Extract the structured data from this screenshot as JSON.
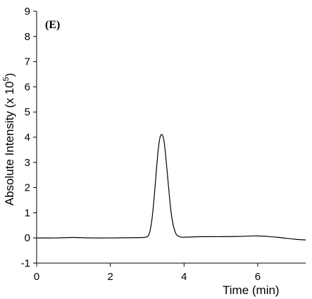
{
  "chart_data": {
    "type": "line",
    "panel_label": "(E)",
    "xlabel": "Time (min)",
    "ylabel_main": "Absolute Intensity (x 10",
    "ylabel_exp": "5",
    "ylabel_close": ")",
    "xlim": [
      0,
      7.3
    ],
    "ylim": [
      -1,
      9
    ],
    "xticks": [
      0,
      2,
      4,
      6
    ],
    "yticks": [
      -1,
      0,
      1,
      2,
      3,
      4,
      5,
      6,
      7,
      8,
      9
    ],
    "grid": false,
    "legend": "none",
    "line_color": "#000000",
    "series": [
      {
        "x": [
          0,
          0.5,
          1.0,
          1.5,
          2.0,
          2.5,
          2.9,
          3.0,
          3.05,
          3.1,
          3.15,
          3.2,
          3.25,
          3.3,
          3.35,
          3.4,
          3.45,
          3.5,
          3.55,
          3.6,
          3.65,
          3.7,
          3.75,
          3.8,
          3.9,
          4.0,
          4.5,
          5.0,
          5.5,
          6.0,
          6.5,
          7.0,
          7.3
        ],
        "y": [
          0.0,
          0.0,
          0.02,
          0.0,
          0.0,
          0.01,
          0.02,
          0.05,
          0.15,
          0.45,
          1.0,
          1.8,
          2.7,
          3.5,
          4.0,
          4.1,
          3.9,
          3.3,
          2.5,
          1.7,
          1.0,
          0.55,
          0.28,
          0.12,
          0.04,
          0.03,
          0.05,
          0.05,
          0.06,
          0.08,
          0.03,
          -0.05,
          -0.08
        ]
      }
    ]
  }
}
